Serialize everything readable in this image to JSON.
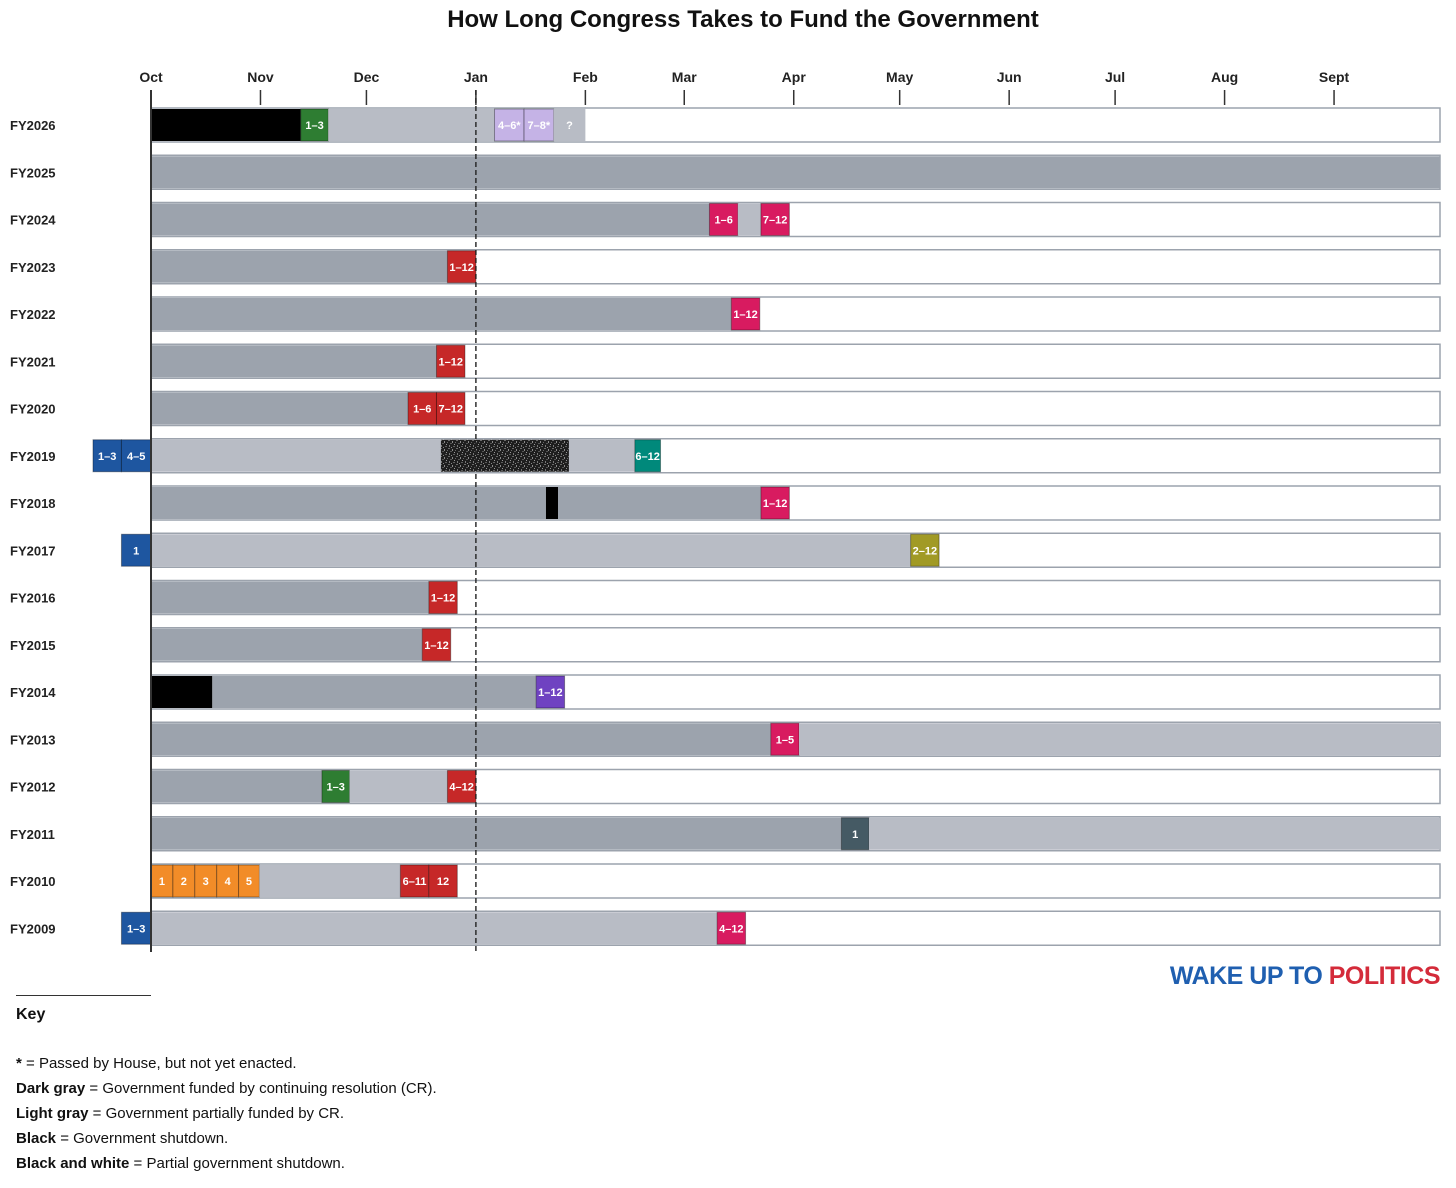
{
  "chart_data": {
    "type": "gantt",
    "title": "How Long Congress Takes to Fund the Government",
    "months": [
      "Oct",
      "Nov",
      "Dec",
      "Jan",
      "Feb",
      "Mar",
      "Apr",
      "May",
      "Jun",
      "Jul",
      "Aug",
      "Sept"
    ],
    "x_unit": "months after Oct 1",
    "xlim": [
      0,
      12
    ],
    "reference_line": {
      "month": 3,
      "label": "Jan 1"
    },
    "colors": {
      "cr": "#9ca3ad",
      "partial": "#b8bcc5",
      "shutdown": "#000000",
      "outline": "#9ca3ad"
    },
    "rows": [
      {
        "label": "FY2026",
        "bars": [
          {
            "kind": "shutdown",
            "start": 0,
            "end": 1.38
          },
          {
            "kind": "bill",
            "start": 1.38,
            "end": 1.64,
            "text": "1–3",
            "color": "#2e7d32"
          },
          {
            "kind": "partial",
            "start": 1.64,
            "end": 3.17
          },
          {
            "kind": "bill",
            "start": 3.17,
            "end": 3.44,
            "text": "4–6*",
            "color": "#c5b3e6"
          },
          {
            "kind": "bill",
            "start": 3.44,
            "end": 3.71,
            "text": "7–8*",
            "color": "#c5b3e6"
          },
          {
            "kind": "partial",
            "start": 3.71,
            "end": 4.0,
            "text": "?"
          }
        ]
      },
      {
        "label": "FY2025",
        "bars": [
          {
            "kind": "cr",
            "start": 0,
            "end": 12
          }
        ]
      },
      {
        "label": "FY2024",
        "bars": [
          {
            "kind": "cr",
            "start": 0,
            "end": 5.23
          },
          {
            "kind": "bill",
            "start": 5.23,
            "end": 5.49,
            "text": "1–6",
            "color": "#d81b60"
          },
          {
            "kind": "partial",
            "start": 5.49,
            "end": 5.7
          },
          {
            "kind": "bill",
            "start": 5.7,
            "end": 5.96,
            "text": "7–12",
            "color": "#d81b60"
          }
        ]
      },
      {
        "label": "FY2023",
        "bars": [
          {
            "kind": "cr",
            "start": 0,
            "end": 2.74
          },
          {
            "kind": "bill",
            "start": 2.74,
            "end": 3.0,
            "text": "1–12",
            "color": "#c62828"
          }
        ]
      },
      {
        "label": "FY2022",
        "bars": [
          {
            "kind": "cr",
            "start": 0,
            "end": 5.43
          },
          {
            "kind": "bill",
            "start": 5.43,
            "end": 5.69,
            "text": "1–12",
            "color": "#d81b60"
          }
        ]
      },
      {
        "label": "FY2021",
        "bars": [
          {
            "kind": "cr",
            "start": 0,
            "end": 2.64
          },
          {
            "kind": "bill",
            "start": 2.64,
            "end": 2.9,
            "text": "1–12",
            "color": "#c62828"
          }
        ]
      },
      {
        "label": "FY2020",
        "bars": [
          {
            "kind": "cr",
            "start": 0,
            "end": 2.38
          },
          {
            "kind": "bill",
            "start": 2.38,
            "end": 2.64,
            "text": "1–6",
            "color": "#c62828"
          },
          {
            "kind": "bill",
            "start": 2.64,
            "end": 2.9,
            "text": "7–12",
            "color": "#c62828"
          }
        ]
      },
      {
        "label": "FY2019",
        "bars": [
          {
            "kind": "bill",
            "start": -0.53,
            "end": -0.27,
            "text": "1–3",
            "color": "#1e56a0"
          },
          {
            "kind": "bill",
            "start": -0.27,
            "end": 0,
            "text": "4–5",
            "color": "#1e56a0"
          },
          {
            "kind": "partial",
            "start": 0,
            "end": 2.68
          },
          {
            "kind": "partial-shutdown",
            "start": 2.68,
            "end": 3.85
          },
          {
            "kind": "partial",
            "start": 3.85,
            "end": 4.5
          },
          {
            "kind": "bill",
            "start": 4.5,
            "end": 4.76,
            "text": "6–12",
            "color": "#00897b"
          }
        ]
      },
      {
        "label": "FY2018",
        "bars": [
          {
            "kind": "cr",
            "start": 0,
            "end": 3.64
          },
          {
            "kind": "shutdown",
            "start": 3.64,
            "end": 3.75
          },
          {
            "kind": "cr",
            "start": 3.75,
            "end": 5.7
          },
          {
            "kind": "bill",
            "start": 5.7,
            "end": 5.96,
            "text": "1–12",
            "color": "#d81b60"
          }
        ]
      },
      {
        "label": "FY2017",
        "bars": [
          {
            "kind": "bill",
            "start": -0.27,
            "end": 0,
            "text": "1",
            "color": "#1e56a0"
          },
          {
            "kind": "partial",
            "start": 0,
            "end": 7.1
          },
          {
            "kind": "bill",
            "start": 7.1,
            "end": 7.36,
            "text": "2–12",
            "color": "#a19a25"
          }
        ]
      },
      {
        "label": "FY2016",
        "bars": [
          {
            "kind": "cr",
            "start": 0,
            "end": 2.57
          },
          {
            "kind": "bill",
            "start": 2.57,
            "end": 2.83,
            "text": "1–12",
            "color": "#c62828"
          }
        ]
      },
      {
        "label": "FY2015",
        "bars": [
          {
            "kind": "cr",
            "start": 0,
            "end": 2.51
          },
          {
            "kind": "bill",
            "start": 2.51,
            "end": 2.77,
            "text": "1–12",
            "color": "#c62828"
          }
        ]
      },
      {
        "label": "FY2014",
        "bars": [
          {
            "kind": "shutdown",
            "start": 0,
            "end": 0.56
          },
          {
            "kind": "cr",
            "start": 0.56,
            "end": 3.55
          },
          {
            "kind": "bill",
            "start": 3.55,
            "end": 3.81,
            "text": "1–12",
            "color": "#6f42c1"
          }
        ]
      },
      {
        "label": "FY2013",
        "bars": [
          {
            "kind": "cr",
            "start": 0,
            "end": 5.79
          },
          {
            "kind": "bill",
            "start": 5.79,
            "end": 6.05,
            "text": "1–5",
            "color": "#d81b60"
          },
          {
            "kind": "partial",
            "start": 6.05,
            "end": 12
          }
        ]
      },
      {
        "label": "FY2012",
        "bars": [
          {
            "kind": "cr",
            "start": 0,
            "end": 1.58
          },
          {
            "kind": "bill",
            "start": 1.58,
            "end": 1.84,
            "text": "1–3",
            "color": "#2e7d32"
          },
          {
            "kind": "partial",
            "start": 1.84,
            "end": 2.74
          },
          {
            "kind": "bill",
            "start": 2.74,
            "end": 3.0,
            "text": "4–12",
            "color": "#c62828"
          }
        ]
      },
      {
        "label": "FY2011",
        "bars": [
          {
            "kind": "cr",
            "start": 0,
            "end": 6.45
          },
          {
            "kind": "bill",
            "start": 6.45,
            "end": 6.71,
            "text": "1",
            "color": "#455a64"
          },
          {
            "kind": "partial",
            "start": 6.71,
            "end": 12
          }
        ]
      },
      {
        "label": "FY2010",
        "bars": [
          {
            "kind": "bill",
            "start": 0,
            "end": 0.2,
            "text": "1",
            "color": "#f28c28"
          },
          {
            "kind": "bill",
            "start": 0.2,
            "end": 0.4,
            "text": "2",
            "color": "#f28c28"
          },
          {
            "kind": "bill",
            "start": 0.4,
            "end": 0.6,
            "text": "3",
            "color": "#f28c28"
          },
          {
            "kind": "bill",
            "start": 0.6,
            "end": 0.8,
            "text": "4",
            "color": "#f28c28"
          },
          {
            "kind": "bill",
            "start": 0.8,
            "end": 0.99,
            "text": "5",
            "color": "#f28c28"
          },
          {
            "kind": "partial",
            "start": 0.99,
            "end": 2.31
          },
          {
            "kind": "bill",
            "start": 2.31,
            "end": 2.57,
            "text": "6–11",
            "color": "#c62828"
          },
          {
            "kind": "bill",
            "start": 2.57,
            "end": 2.83,
            "text": "12",
            "color": "#c62828"
          }
        ]
      },
      {
        "label": "FY2009",
        "bars": [
          {
            "kind": "bill",
            "start": -0.27,
            "end": 0,
            "text": "1–3",
            "color": "#1e56a0"
          },
          {
            "kind": "partial",
            "start": 0,
            "end": 5.3
          },
          {
            "kind": "bill",
            "start": 5.3,
            "end": 5.56,
            "text": "4–12",
            "color": "#d81b60"
          }
        ]
      }
    ]
  },
  "brand": {
    "part1": "WAKE UP T",
    "part2": "O",
    "part3": " POLITICS"
  },
  "key": {
    "title": "Key",
    "items": [
      {
        "term": "*",
        "desc": " = Passed by House,  but not yet enacted."
      },
      {
        "term": "Dark gray",
        "desc": " = Government funded  by continuing resolution (CR)."
      },
      {
        "term": "Light gray",
        "desc": " = Government partially funded by CR."
      },
      {
        "term": "Black",
        "desc": " = Government shutdown."
      },
      {
        "term": "Black and white",
        "desc": "  = Partial government shutdown."
      }
    ]
  }
}
